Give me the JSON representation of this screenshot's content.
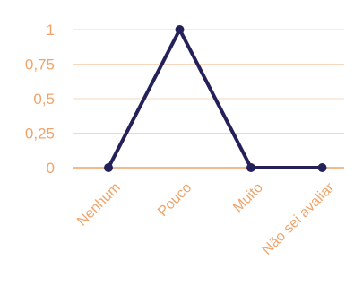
{
  "colors": {
    "label": "#F0A46A",
    "grid": "#F7D6BE",
    "axis": "#F0A46A",
    "line": "#24215A",
    "marker": "#24215A"
  },
  "chart_data": {
    "type": "line",
    "title": "",
    "xlabel": "",
    "ylabel": "",
    "categories": [
      "Nenhum",
      "Pouco",
      "Muito",
      "Não sei avaliar"
    ],
    "values": [
      0,
      1,
      0,
      0
    ],
    "ylim": [
      0,
      1
    ],
    "yticks": [
      {
        "value": 0,
        "label": "0"
      },
      {
        "value": 0.25,
        "label": "0,25"
      },
      {
        "value": 0.5,
        "label": "0,5"
      },
      {
        "value": 0.75,
        "label": "0,75"
      },
      {
        "value": 1,
        "label": "1"
      }
    ],
    "grid": true,
    "legend": "none"
  }
}
